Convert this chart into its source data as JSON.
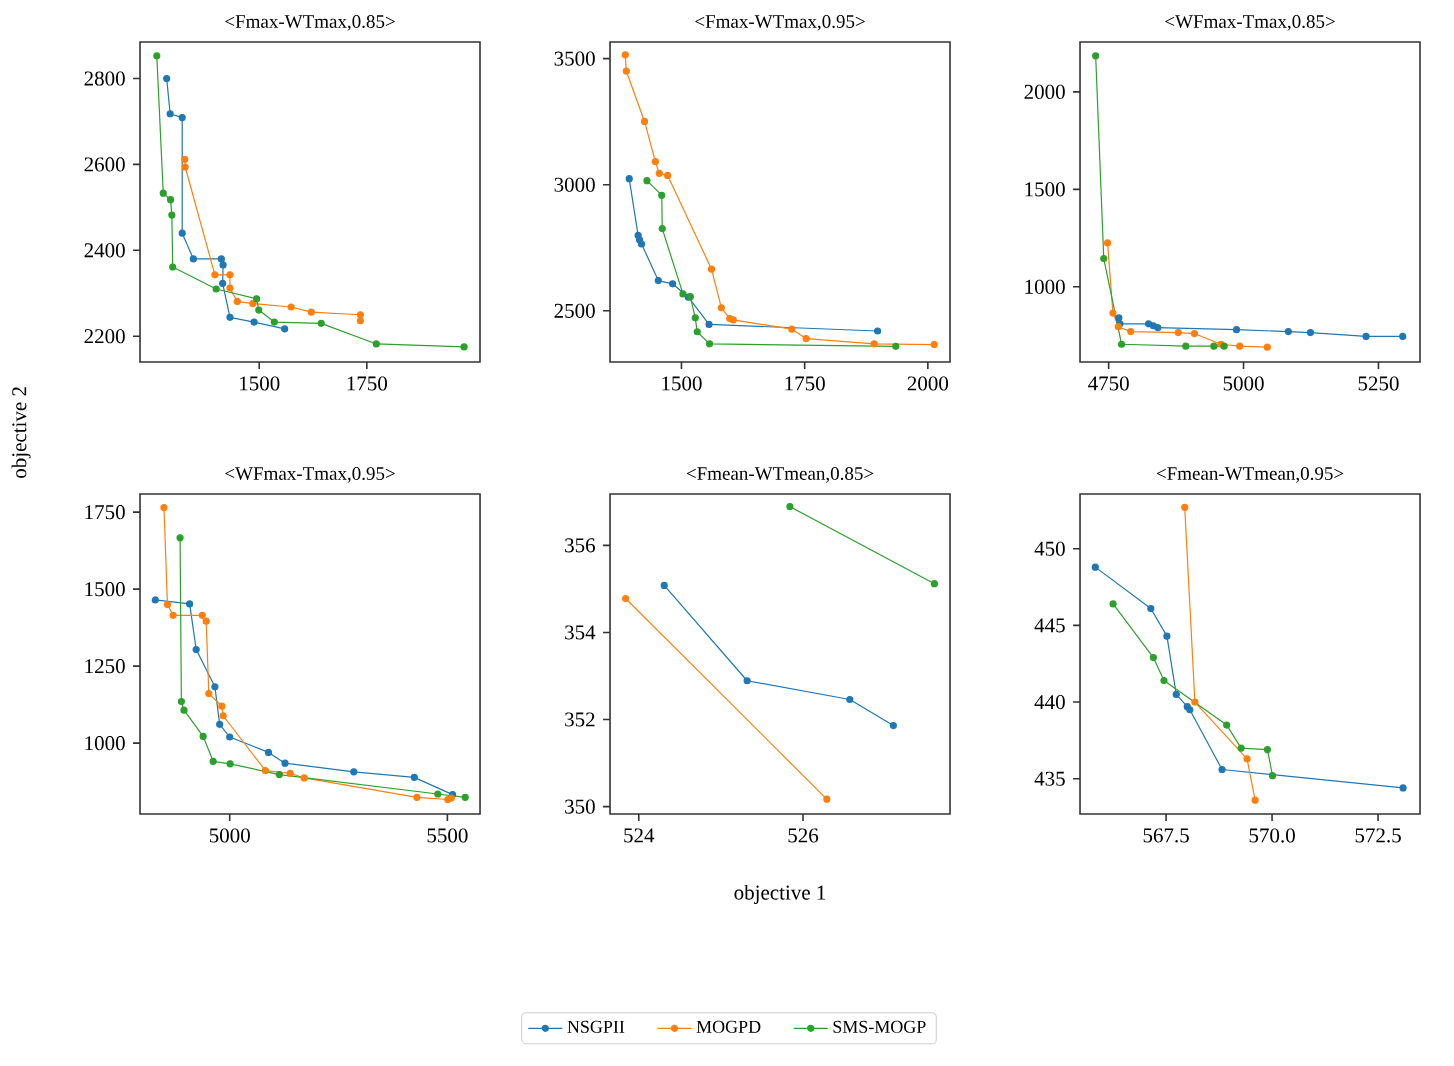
{
  "chart_data": [
    {
      "type": "line",
      "title": "<Fmax-WTmax,0.85>",
      "ylabel": "objective 2",
      "marker": "circle",
      "xlim": [
        1223,
        2013
      ],
      "ylim": [
        2140,
        2885
      ],
      "xticks": [
        1500,
        1750
      ],
      "yticks": [
        2200,
        2400,
        2600,
        2800
      ],
      "series": [
        {
          "color": "#1f77b4",
          "x": [
            1285,
            1293,
            1321,
            1321,
            1347,
            1412,
            1416,
            1415,
            1432,
            1488,
            1559
          ],
          "values": [
            2800,
            2718,
            2709,
            2440,
            2380,
            2380,
            2366,
            2323,
            2244,
            2233,
            2217
          ]
        },
        {
          "color": "#ff7f0e",
          "x": [
            1327,
            1328,
            1397,
            1432,
            1432,
            1449,
            1485,
            1574,
            1621,
            1735,
            1735
          ],
          "values": [
            2612,
            2594,
            2343,
            2343,
            2312,
            2281,
            2276,
            2268,
            2256,
            2250,
            2236
          ]
        },
        {
          "color": "#2ca02c",
          "x": [
            1262,
            1277,
            1294,
            1297,
            1299,
            1400,
            1494,
            1499,
            1535,
            1644,
            1772,
            1976
          ],
          "values": [
            2853,
            2533,
            2518,
            2482,
            2361,
            2310,
            2287,
            2261,
            2233,
            2230,
            2182,
            2175
          ]
        }
      ]
    },
    {
      "type": "line",
      "title": "<Fmax-WTmax,0.95>",
      "marker": "circle",
      "xlim": [
        1355,
        2045
      ],
      "ylim": [
        2297,
        3566
      ],
      "xticks": [
        1500,
        1750,
        2000
      ],
      "yticks": [
        2500,
        3000,
        3500
      ],
      "series": [
        {
          "color": "#1f77b4",
          "x": [
            1394,
            1412,
            1415,
            1419,
            1453,
            1482,
            1514,
            1556,
            1898
          ],
          "values": [
            3024,
            2799,
            2781,
            2765,
            2620,
            2607,
            2554,
            2446,
            2420
          ]
        },
        {
          "color": "#ff7f0e",
          "x": [
            1386,
            1388,
            1425,
            1447,
            1455,
            1472,
            1561,
            1581,
            1598,
            1605,
            1724,
            1753,
            1891,
            2013
          ],
          "values": [
            3515,
            3451,
            3251,
            3092,
            3045,
            3037,
            2665,
            2512,
            2469,
            2464,
            2427,
            2390,
            2369,
            2366
          ]
        },
        {
          "color": "#2ca02c",
          "x": [
            1430,
            1460,
            1461,
            1503,
            1518,
            1528,
            1532,
            1557,
            1935
          ],
          "values": [
            3016,
            2958,
            2826,
            2567,
            2556,
            2472,
            2417,
            2369,
            2359
          ]
        }
      ]
    },
    {
      "type": "line",
      "title": "<WFmax-Tmax,0.85>",
      "marker": "circle",
      "xlim": [
        4697,
        5327
      ],
      "ylim": [
        614,
        2256
      ],
      "xticks": [
        4750,
        5000,
        5250
      ],
      "yticks": [
        1000,
        1500,
        2000
      ],
      "series": [
        {
          "color": "#1f77b4",
          "x": [
            4769,
            4771,
            4824,
            4833,
            4841,
            4987,
            5083,
            5124,
            5227,
            5295
          ],
          "values": [
            840,
            810,
            810,
            800,
            790,
            780,
            770,
            765,
            745,
            745
          ]
        },
        {
          "color": "#ff7f0e",
          "x": [
            4748,
            4758,
            4768,
            4791,
            4879,
            4909,
            4958,
            4993,
            5044
          ],
          "values": [
            1225,
            865,
            795,
            770,
            765,
            760,
            705,
            695,
            690
          ]
        },
        {
          "color": "#2ca02c",
          "x": [
            4726,
            4741,
            4774,
            4893,
            4945,
            4964
          ],
          "values": [
            2185,
            1145,
            705,
            695,
            695,
            695
          ]
        }
      ]
    },
    {
      "type": "line",
      "title": "<WFmax-Tmax,0.95>",
      "marker": "circle",
      "xlim": [
        4794,
        5575
      ],
      "ylim": [
        770,
        1809
      ],
      "xticks": [
        5000,
        5500
      ],
      "yticks": [
        1000,
        1250,
        1500,
        1750
      ],
      "series": [
        {
          "color": "#1f77b4",
          "x": [
            4829,
            4908,
            4923,
            4966,
            4977,
            5000,
            5089,
            5127,
            5285,
            5424,
            5512
          ],
          "values": [
            1465,
            1452,
            1304,
            1183,
            1061,
            1020,
            970,
            935,
            907,
            889,
            833
          ]
        },
        {
          "color": "#ff7f0e",
          "x": [
            4849,
            4857,
            4870,
            4937,
            4946,
            4952,
            4982,
            4985,
            5082,
            5139,
            5171,
            5430,
            5501,
            5509
          ],
          "values": [
            1765,
            1450,
            1415,
            1415,
            1396,
            1161,
            1120,
            1089,
            911,
            902,
            887,
            824,
            817,
            822
          ]
        },
        {
          "color": "#2ca02c",
          "x": [
            4886,
            4889,
            4895,
            4939,
            4962,
            5001,
            5114,
            5478,
            5541
          ],
          "values": [
            1667,
            1135,
            1107,
            1022,
            941,
            933,
            898,
            835,
            824
          ]
        }
      ]
    },
    {
      "type": "line",
      "title": "<Fmean-WTmean,0.85>",
      "xlabel": "objective 1",
      "marker": "circle",
      "legend": "bottom",
      "xlim": [
        523.65,
        527.79
      ],
      "ylim": [
        349.83,
        357.18
      ],
      "xticks": [
        524,
        526
      ],
      "yticks": [
        350,
        352,
        354,
        356
      ],
      "series": [
        {
          "name": "NSGPII",
          "color": "#1f77b4",
          "x": [
            524.31,
            525.32,
            526.57,
            527.1
          ],
          "values": [
            355.08,
            352.89,
            352.46,
            351.86
          ]
        },
        {
          "name": "MOGPD",
          "color": "#ff7f0e",
          "x": [
            523.84,
            526.29
          ],
          "values": [
            354.78,
            350.17
          ]
        },
        {
          "name": "SMS-MOGP",
          "color": "#2ca02c",
          "x": [
            525.84,
            527.6
          ],
          "values": [
            356.89,
            355.12
          ]
        }
      ]
    },
    {
      "type": "line",
      "title": "<Fmean-WTmean,0.95>",
      "marker": "circle",
      "xlim": [
        565.47,
        573.49
      ],
      "ylim": [
        432.7,
        453.57
      ],
      "xticks": [
        567.5,
        {
          "value": 570,
          "label": "570.0"
        },
        572.5
      ],
      "yticks": [
        435,
        440,
        445,
        450
      ],
      "series": [
        {
          "color": "#1f77b4",
          "x": [
            565.83,
            567.14,
            567.52,
            567.74,
            568.0,
            568.06,
            568.82,
            573.09
          ],
          "values": [
            448.8,
            446.1,
            444.3,
            440.5,
            439.7,
            439.5,
            435.6,
            434.4
          ]
        },
        {
          "color": "#ff7f0e",
          "x": [
            567.94,
            568.18,
            569.41,
            569.6
          ],
          "values": [
            452.7,
            440.0,
            436.3,
            433.6
          ]
        },
        {
          "color": "#2ca02c",
          "x": [
            566.25,
            567.2,
            567.45,
            568.93,
            569.27,
            569.89,
            570.01
          ],
          "values": [
            446.4,
            442.9,
            441.4,
            438.5,
            437.0,
            436.9,
            435.2
          ]
        }
      ]
    }
  ]
}
